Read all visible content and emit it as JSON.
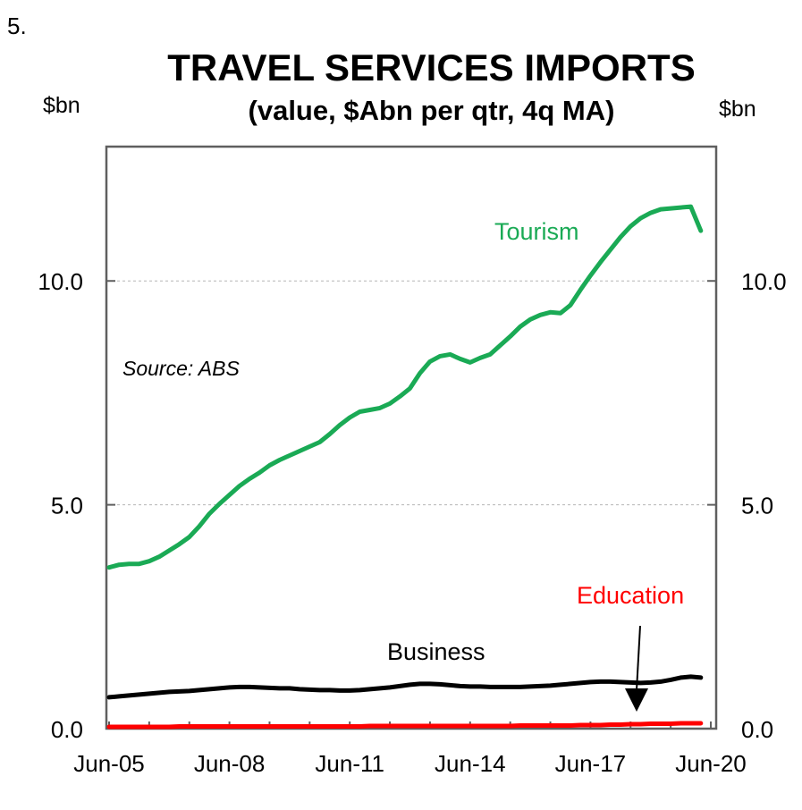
{
  "figure_number": "5.",
  "chart_data": {
    "type": "line",
    "title": "TRAVEL SERVICES IMPORTS",
    "subtitle": "(value, $Abn per qtr, 4q MA)",
    "ylabel_left": "$bn",
    "ylabel_right": "$bn",
    "ylim": [
      0,
      13
    ],
    "yticks": [
      0,
      5,
      10
    ],
    "ytick_labels": [
      "0.0",
      "5.0",
      "10.0"
    ],
    "xlim": [
      "Jun-05",
      "Mar-20"
    ],
    "xtick_labels": [
      "Jun-05",
      "Jun-08",
      "Jun-11",
      "Jun-14",
      "Jun-17",
      "Jun-20"
    ],
    "grid": true,
    "source": "Source: ABS",
    "annotation": "Education",
    "colors": {
      "Tourism": "#1aaa55",
      "Business": "#000000",
      "Education": "#ff0000"
    },
    "x": [
      "Jun-05",
      "Sep-05",
      "Dec-05",
      "Mar-06",
      "Jun-06",
      "Sep-06",
      "Dec-06",
      "Mar-07",
      "Jun-07",
      "Sep-07",
      "Dec-07",
      "Mar-08",
      "Jun-08",
      "Sep-08",
      "Dec-08",
      "Mar-09",
      "Jun-09",
      "Sep-09",
      "Dec-09",
      "Mar-10",
      "Jun-10",
      "Sep-10",
      "Dec-10",
      "Mar-11",
      "Jun-11",
      "Sep-11",
      "Dec-11",
      "Mar-12",
      "Jun-12",
      "Sep-12",
      "Dec-12",
      "Mar-13",
      "Jun-13",
      "Sep-13",
      "Dec-13",
      "Mar-14",
      "Jun-14",
      "Sep-14",
      "Dec-14",
      "Mar-15",
      "Jun-15",
      "Sep-15",
      "Dec-15",
      "Mar-16",
      "Jun-16",
      "Sep-16",
      "Dec-16",
      "Mar-17",
      "Jun-17",
      "Sep-17",
      "Dec-17",
      "Mar-18",
      "Jun-18",
      "Sep-18",
      "Dec-18",
      "Mar-19",
      "Jun-19",
      "Sep-19",
      "Dec-19",
      "Mar-20"
    ],
    "series": [
      {
        "name": "Tourism",
        "values": [
          3.6,
          3.66,
          3.68,
          3.68,
          3.74,
          3.84,
          3.98,
          4.12,
          4.28,
          4.52,
          4.8,
          5.02,
          5.22,
          5.42,
          5.58,
          5.72,
          5.88,
          6.0,
          6.1,
          6.2,
          6.3,
          6.4,
          6.58,
          6.78,
          6.95,
          7.08,
          7.12,
          7.16,
          7.26,
          7.42,
          7.6,
          7.94,
          8.2,
          8.32,
          8.36,
          8.26,
          8.18,
          8.28,
          8.36,
          8.56,
          8.76,
          8.98,
          9.14,
          9.24,
          9.3,
          9.28,
          9.46,
          9.8,
          10.12,
          10.42,
          10.7,
          10.98,
          11.22,
          11.4,
          11.52,
          11.6,
          11.62,
          11.64,
          11.66,
          11.12
        ]
      },
      {
        "name": "Business",
        "values": [
          0.7,
          0.72,
          0.74,
          0.76,
          0.78,
          0.8,
          0.82,
          0.83,
          0.84,
          0.86,
          0.88,
          0.9,
          0.92,
          0.93,
          0.93,
          0.92,
          0.91,
          0.9,
          0.9,
          0.88,
          0.87,
          0.86,
          0.86,
          0.85,
          0.85,
          0.86,
          0.88,
          0.9,
          0.92,
          0.95,
          0.98,
          1.0,
          1.0,
          0.99,
          0.97,
          0.95,
          0.94,
          0.94,
          0.93,
          0.93,
          0.93,
          0.93,
          0.94,
          0.95,
          0.96,
          0.98,
          1.0,
          1.02,
          1.04,
          1.05,
          1.05,
          1.04,
          1.03,
          1.02,
          1.03,
          1.05,
          1.09,
          1.14,
          1.16,
          1.14
        ]
      },
      {
        "name": "Education",
        "values": [
          0.04,
          0.04,
          0.04,
          0.04,
          0.04,
          0.04,
          0.04,
          0.05,
          0.05,
          0.05,
          0.05,
          0.05,
          0.05,
          0.05,
          0.05,
          0.05,
          0.05,
          0.05,
          0.05,
          0.05,
          0.05,
          0.05,
          0.05,
          0.05,
          0.05,
          0.05,
          0.06,
          0.06,
          0.06,
          0.06,
          0.06,
          0.06,
          0.06,
          0.06,
          0.06,
          0.06,
          0.06,
          0.06,
          0.06,
          0.06,
          0.06,
          0.07,
          0.07,
          0.07,
          0.07,
          0.07,
          0.07,
          0.08,
          0.08,
          0.08,
          0.09,
          0.09,
          0.1,
          0.1,
          0.11,
          0.11,
          0.11,
          0.12,
          0.12,
          0.12
        ]
      }
    ]
  }
}
